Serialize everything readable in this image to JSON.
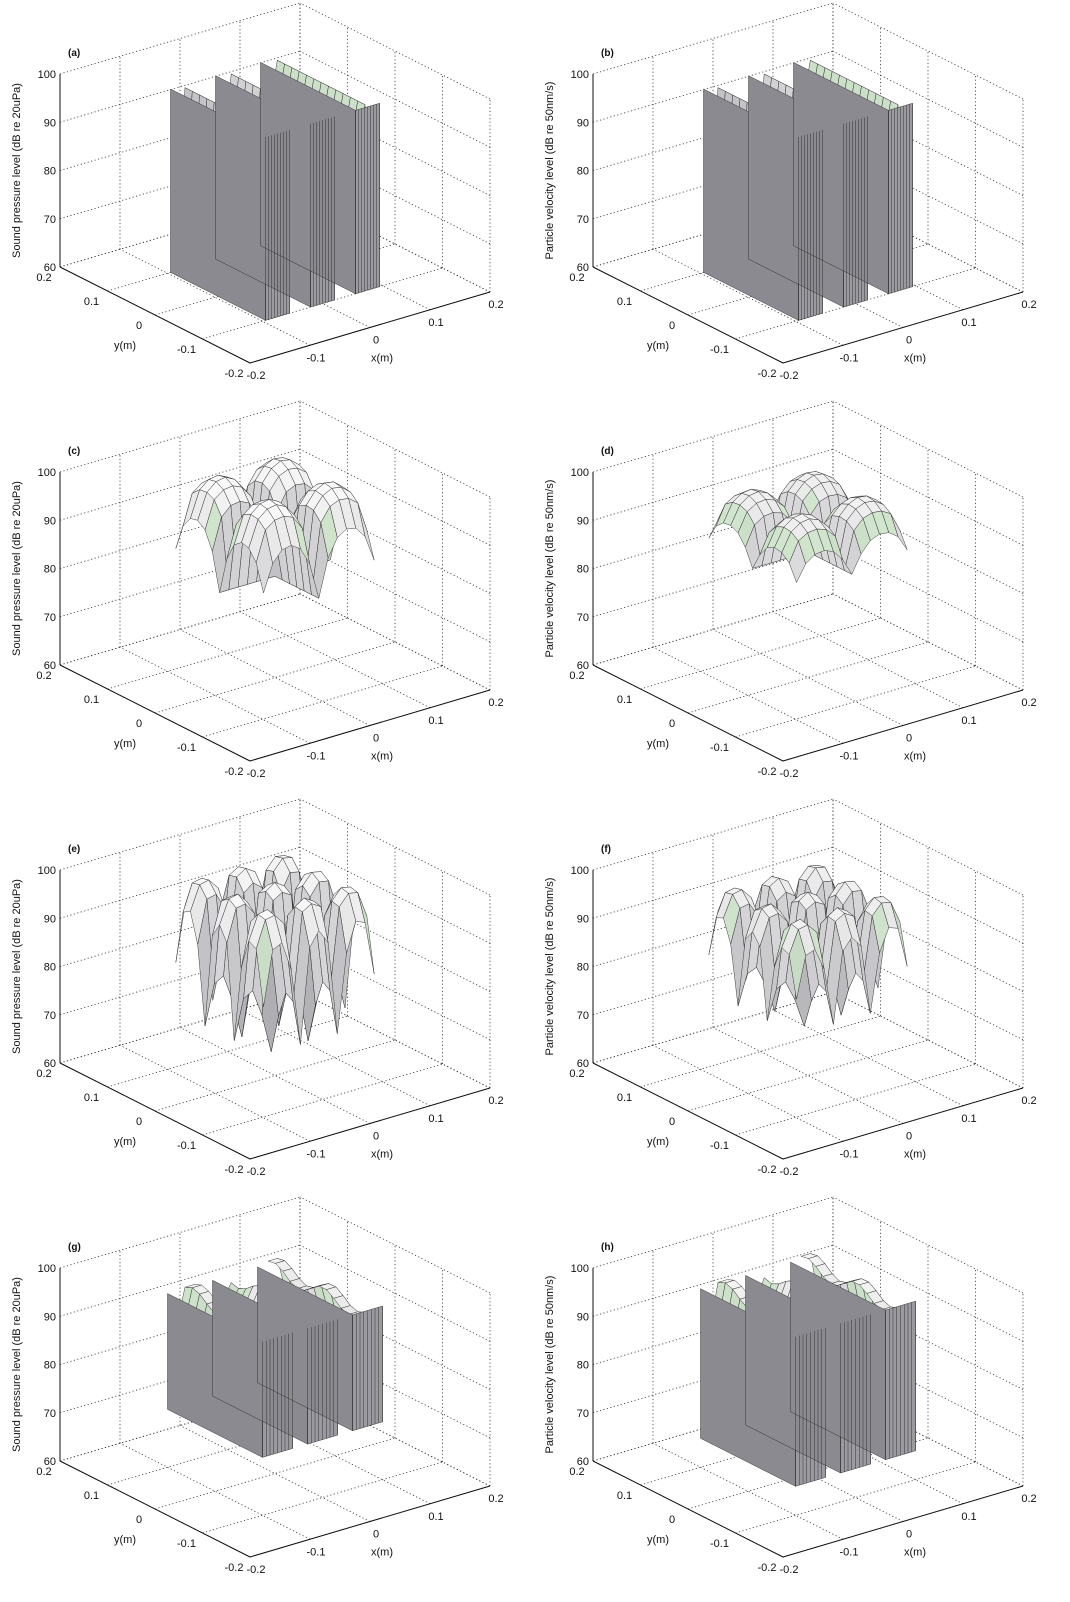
{
  "chart_data": [
    {
      "id": "a",
      "type": "surface",
      "title": "(a)",
      "zlabel": "Sound pressure level (dB re 20uPa)",
      "xlabel": "x(m)",
      "ylabel": "y(m)",
      "xlim": [
        -0.2,
        0.2
      ],
      "ylim": [
        -0.2,
        0.2
      ],
      "zlim": [
        60,
        100
      ],
      "xticks": [
        "-0.2",
        "-0.1",
        "0",
        "0.1",
        "0.2"
      ],
      "yticks": [
        "-0.2",
        "-0.1",
        "0",
        "0.1",
        "0.2"
      ],
      "zticks": [
        "60",
        "70",
        "80",
        "90",
        "100"
      ],
      "surface": {
        "kind": "strips",
        "base": 98,
        "floor": 60,
        "centers": [
          -0.075,
          0,
          0.075
        ],
        "halfwidth": 0.02,
        "yrange": [
          -0.1,
          0.1
        ],
        "ripple": 0
      }
    },
    {
      "id": "b",
      "type": "surface",
      "title": "(b)",
      "zlabel": "Particle velocity level (dB re 50nm/s)",
      "xlabel": "x(m)",
      "ylabel": "y(m)",
      "xlim": [
        -0.2,
        0.2
      ],
      "ylim": [
        -0.2,
        0.2
      ],
      "zlim": [
        60,
        100
      ],
      "xticks": [
        "-0.2",
        "-0.1",
        "0",
        "0.1",
        "0.2"
      ],
      "yticks": [
        "-0.2",
        "-0.1",
        "0",
        "0.1",
        "0.2"
      ],
      "zticks": [
        "60",
        "70",
        "80",
        "90",
        "100"
      ],
      "surface": {
        "kind": "strips",
        "base": 98,
        "floor": 60,
        "centers": [
          -0.075,
          0,
          0.075
        ],
        "halfwidth": 0.02,
        "yrange": [
          -0.1,
          0.1
        ],
        "ripple": 0
      }
    },
    {
      "id": "c",
      "type": "surface",
      "title": "(c)",
      "zlabel": "Sound pressure level (dB re 20uPa)",
      "xlabel": "x(m)",
      "ylabel": "y(m)",
      "xlim": [
        -0.2,
        0.2
      ],
      "ylim": [
        -0.2,
        0.2
      ],
      "zlim": [
        60,
        100
      ],
      "xticks": [
        "-0.2",
        "-0.1",
        "0",
        "0.1",
        "0.2"
      ],
      "yticks": [
        "-0.2",
        "-0.1",
        "0",
        "0.1",
        "0.2"
      ],
      "zticks": [
        "60",
        "70",
        "80",
        "90",
        "100"
      ],
      "surface": {
        "kind": "modal",
        "base": 95,
        "amp": 6,
        "kx": 1,
        "ky": 1,
        "dipdepth": 14,
        "xrange": [
          -0.1,
          0.1
        ],
        "yrange": [
          -0.1,
          0.1
        ],
        "min": 80
      }
    },
    {
      "id": "d",
      "type": "surface",
      "title": "(d)",
      "zlabel": "Particle velocity level (dB re 50nm/s)",
      "xlabel": "x(m)",
      "ylabel": "y(m)",
      "xlim": [
        -0.2,
        0.2
      ],
      "ylim": [
        -0.2,
        0.2
      ],
      "zlim": [
        60,
        100
      ],
      "xticks": [
        "-0.2",
        "-0.1",
        "0",
        "0.1",
        "0.2"
      ],
      "yticks": [
        "-0.2",
        "-0.1",
        "0",
        "0.1",
        "0.2"
      ],
      "zticks": [
        "60",
        "70",
        "80",
        "90",
        "100"
      ],
      "surface": {
        "kind": "modal",
        "base": 93,
        "amp": 5,
        "kx": 1,
        "ky": 1,
        "dipdepth": 8,
        "xrange": [
          -0.1,
          0.1
        ],
        "yrange": [
          -0.1,
          0.1
        ],
        "min": 86
      }
    },
    {
      "id": "e",
      "type": "surface",
      "title": "(e)",
      "zlabel": "Sound pressure level (dB re 20uPa)",
      "xlabel": "x(m)",
      "ylabel": "y(m)",
      "xlim": [
        -0.2,
        0.2
      ],
      "ylim": [
        -0.2,
        0.2
      ],
      "zlim": [
        60,
        100
      ],
      "xticks": [
        "-0.2",
        "-0.1",
        "0",
        "0.1",
        "0.2"
      ],
      "yticks": [
        "-0.2",
        "-0.1",
        "0",
        "0.1",
        "0.2"
      ],
      "zticks": [
        "60",
        "70",
        "80",
        "90",
        "100"
      ],
      "surface": {
        "kind": "modal",
        "base": 95,
        "amp": 5,
        "kx": 2,
        "ky": 2,
        "dipdepth": 30,
        "xrange": [
          -0.1,
          0.1
        ],
        "yrange": [
          -0.1,
          0.1
        ],
        "min": 62
      }
    },
    {
      "id": "f",
      "type": "surface",
      "title": "(f)",
      "zlabel": "Particle velocity level (dB re 50nm/s)",
      "xlabel": "x(m)",
      "ylabel": "y(m)",
      "xlim": [
        -0.2,
        0.2
      ],
      "ylim": [
        -0.2,
        0.2
      ],
      "zlim": [
        60,
        100
      ],
      "xticks": [
        "-0.2",
        "-0.1",
        "0",
        "0.1",
        "0.2"
      ],
      "yticks": [
        "-0.2",
        "-0.1",
        "0",
        "0.1",
        "0.2"
      ],
      "zticks": [
        "60",
        "70",
        "80",
        "90",
        "100"
      ],
      "surface": {
        "kind": "modal",
        "base": 93,
        "amp": 5,
        "kx": 2,
        "ky": 2,
        "dipdepth": 22,
        "xrange": [
          -0.1,
          0.1
        ],
        "yrange": [
          -0.1,
          0.1
        ],
        "min": 70
      }
    },
    {
      "id": "g",
      "type": "surface",
      "title": "(g)",
      "zlabel": "Sound pressure level (dB re 20uPa)",
      "xlabel": "x(m)",
      "ylabel": "y(m)",
      "xlim": [
        -0.2,
        0.2
      ],
      "ylim": [
        -0.2,
        0.2
      ],
      "zlim": [
        60,
        100
      ],
      "xticks": [
        "-0.2",
        "-0.1",
        "0",
        "0.1",
        "0.2"
      ],
      "yticks": [
        "-0.2",
        "-0.1",
        "0",
        "0.1",
        "0.2"
      ],
      "zticks": [
        "60",
        "70",
        "80",
        "90",
        "100"
      ],
      "surface": {
        "kind": "strips",
        "base": 96,
        "floor": 72,
        "centers": [
          -0.075,
          0,
          0.075
        ],
        "halfwidth": 0.025,
        "yrange": [
          -0.1,
          0.1
        ],
        "ripple": 3
      }
    },
    {
      "id": "h",
      "type": "surface",
      "title": "(h)",
      "zlabel": "Particle velocity level (dB re 50nm/s)",
      "xlabel": "x(m)",
      "ylabel": "y(m)",
      "xlim": [
        -0.2,
        0.2
      ],
      "ylim": [
        -0.2,
        0.2
      ],
      "zlim": [
        60,
        100
      ],
      "xticks": [
        "-0.2",
        "-0.1",
        "0",
        "0.1",
        "0.2"
      ],
      "yticks": [
        "-0.2",
        "-0.1",
        "0",
        "0.1",
        "0.2"
      ],
      "zticks": [
        "60",
        "70",
        "80",
        "90",
        "100"
      ],
      "surface": {
        "kind": "strips",
        "base": 97,
        "floor": 66,
        "centers": [
          -0.075,
          0,
          0.075
        ],
        "halfwidth": 0.025,
        "yrange": [
          -0.1,
          0.1
        ],
        "ripple": 3
      }
    }
  ]
}
